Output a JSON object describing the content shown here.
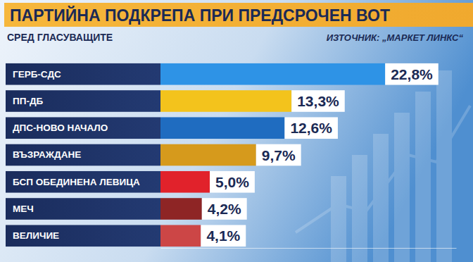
{
  "chart_data": {
    "type": "bar",
    "orientation": "horizontal",
    "title": "ПАРТИЙНА ПОДКРЕПА ПРИ ПРЕДСРОЧЕН ВОТ",
    "subtitle": "СРЕД ГЛАСУВАЩИТЕ",
    "annotations": [
      "ИЗТОЧНИК: „МАРКЕТ ЛИНКС“"
    ],
    "categories": [
      "ГЕРБ-СДС",
      "ПП-ДБ",
      "ДПС-НОВО НАЧАЛО",
      "ВЪЗРАЖДАНЕ",
      "БСП ОБЕДИНЕНА ЛЕВИЦА",
      "МЕЧ",
      "ВЕЛИЧИЕ"
    ],
    "values": [
      22.8,
      13.3,
      12.6,
      9.7,
      5.0,
      4.2,
      4.1
    ],
    "value_labels": [
      "22,8%",
      "13,3%",
      "12,6%",
      "9,7%",
      "5,0%",
      "4,2%",
      "4,1%"
    ],
    "colors": [
      "#2e93e6",
      "#f3c31c",
      "#1f6cc0",
      "#d69a1c",
      "#e1222b",
      "#8e2525",
      "#cc4646"
    ],
    "xlim": [
      0,
      30
    ],
    "grid": false,
    "data_labels": true,
    "tick_labels": "y"
  }
}
